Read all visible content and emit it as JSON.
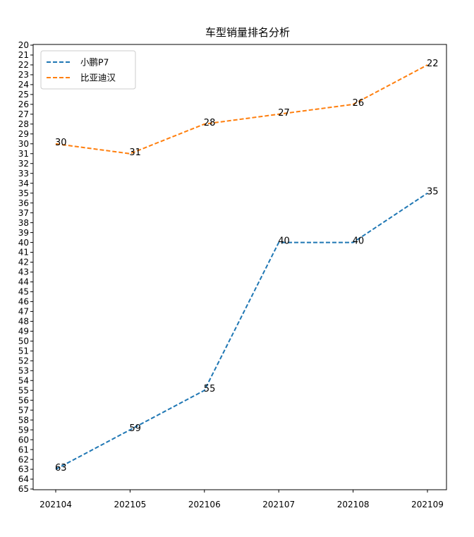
{
  "chart_data": {
    "type": "line",
    "title": "车型销量排名分析",
    "xlabel": "",
    "ylabel": "",
    "categories": [
      "202104",
      "202105",
      "202106",
      "202107",
      "202108",
      "202109"
    ],
    "series": [
      {
        "name": "小鹏P7",
        "values": [
          63,
          59,
          55,
          40,
          40,
          35
        ],
        "color": "#1f77b4",
        "style": "dashed"
      },
      {
        "name": "比亚迪汉",
        "values": [
          30,
          31,
          28,
          27,
          26,
          22
        ],
        "color": "#ff7f0e",
        "style": "dashed"
      }
    ],
    "ylim": [
      20,
      65
    ],
    "y_inverted": true,
    "yticks_step": 1,
    "grid": false,
    "legend": "top-left"
  }
}
